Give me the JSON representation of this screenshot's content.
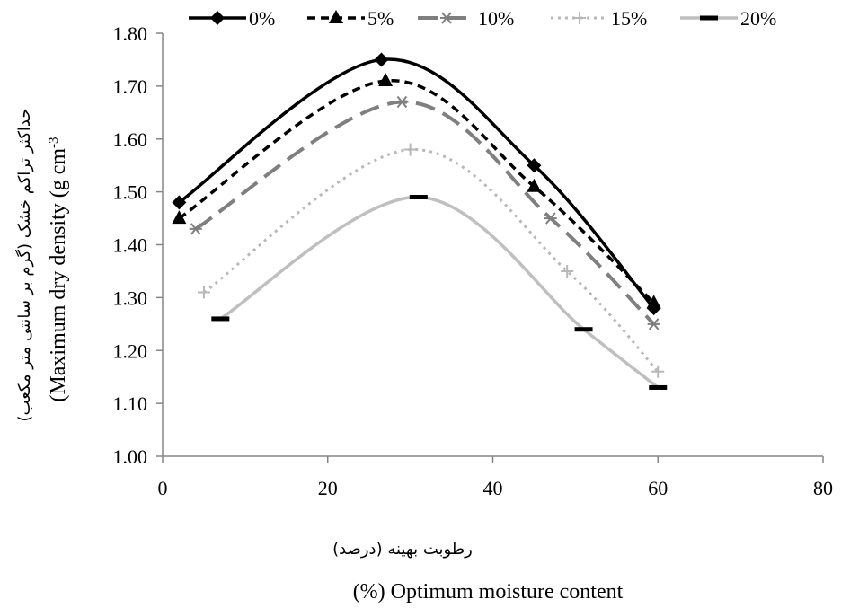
{
  "chart_data": {
    "type": "line",
    "smooth": true,
    "xlabel": "(%) Optimum moisture content",
    "xlabel_fa": "رطوبت بهینه (درصد)",
    "ylabel": "(Maximum dry density (g cm",
    "ylabel_sup": "-3",
    "ylabel_fa": "حداکثر تراکم خشک (گرم بر سانتی متر مکعب)",
    "xlim": [
      0,
      80
    ],
    "ylim": [
      1.0,
      1.8
    ],
    "x_ticks": [
      "0",
      "20",
      "40",
      "60",
      "80"
    ],
    "y_ticks": [
      "1.00",
      "1.10",
      "1.20",
      "1.30",
      "1.40",
      "1.50",
      "1.60",
      "1.70",
      "1.80"
    ],
    "grid": false,
    "legend_position": "top",
    "series": [
      {
        "name": "0%",
        "color": "#000000",
        "dash": "solid",
        "marker": "diamond",
        "x": [
          2,
          26.5,
          45,
          59.5
        ],
        "y": [
          1.48,
          1.75,
          1.55,
          1.28
        ]
      },
      {
        "name": "5%",
        "color": "#000000",
        "dash": "short-dash",
        "marker": "triangle",
        "x": [
          2,
          27,
          45,
          59.5
        ],
        "y": [
          1.45,
          1.71,
          1.51,
          1.29
        ]
      },
      {
        "name": "10%",
        "color": "#7f7f7f",
        "dash": "long-dash",
        "marker": "asterisk",
        "x": [
          4,
          29,
          47,
          59.5
        ],
        "y": [
          1.43,
          1.67,
          1.45,
          1.25
        ]
      },
      {
        "name": "15%",
        "color": "#b8b8b8",
        "dash": "dotted",
        "marker": "plus",
        "x": [
          5,
          30,
          49,
          60
        ],
        "y": [
          1.31,
          1.58,
          1.35,
          1.16
        ]
      },
      {
        "name": "20%",
        "color": "#bfbfbf",
        "dash": "solid",
        "marker": "dash",
        "x": [
          7,
          31,
          51,
          60
        ],
        "y": [
          1.26,
          1.49,
          1.24,
          1.13
        ]
      }
    ]
  }
}
